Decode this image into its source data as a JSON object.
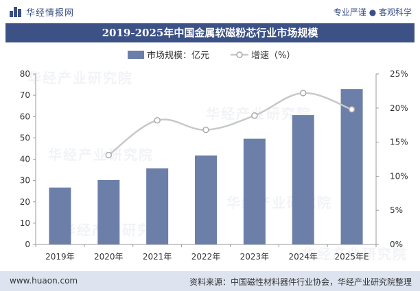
{
  "header": {
    "brand": "华经情报网",
    "slogan": "专业严谨 ● 客观科学"
  },
  "title": "2019-2025年中国金属软磁粉芯行业市场规模",
  "footer": {
    "url": "www.huaon.com",
    "source": "资料来源：中国磁性材料器件行业协会，华经产业研究院整理"
  },
  "watermark": "华经产业研究院",
  "colors": {
    "bar": "#6b7fa9",
    "line": "#c8c8c8",
    "title_bg": "#3c5186",
    "footer_bg": "#dde3ef"
  },
  "chart_data": {
    "type": "bar",
    "categories": [
      "2019年",
      "2020年",
      "2021年",
      "2022年",
      "2023年",
      "2024年",
      "2025年E"
    ],
    "series": [
      {
        "name": "市场规模：亿元",
        "type": "bar",
        "axis": "left",
        "values": [
          26.7,
          30.2,
          35.7,
          41.7,
          49.6,
          60.7,
          72.9
        ]
      },
      {
        "name": "增速（%）",
        "type": "line",
        "axis": "right",
        "values": [
          null,
          13.1,
          18.2,
          16.8,
          18.9,
          22.2,
          19.8
        ]
      }
    ],
    "y_left": {
      "min": 0,
      "max": 80,
      "ticks": [
        0,
        10,
        20,
        30,
        40,
        50,
        60,
        70,
        80
      ]
    },
    "y_right": {
      "min": 0,
      "max": 25,
      "ticks": [
        "0%",
        "5%",
        "10%",
        "15%",
        "20%",
        "25%"
      ]
    },
    "legend_position": "top",
    "grid": false
  }
}
